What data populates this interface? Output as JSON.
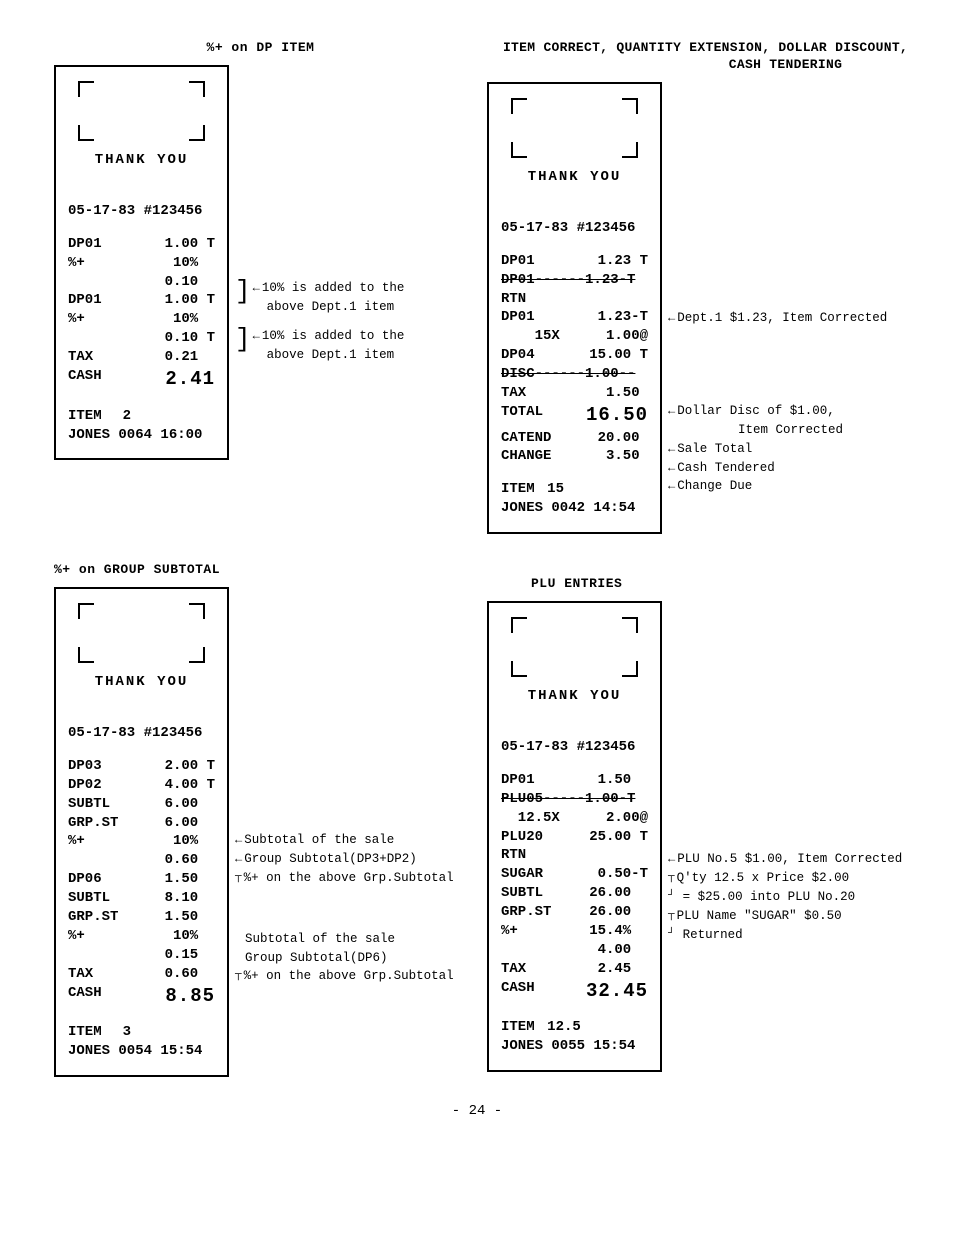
{
  "page_number": "- 24 -",
  "receipts": {
    "q1": {
      "title": "%+ on DP ITEM",
      "thank_you": "THANK  YOU",
      "header": "05-17-83 #123456",
      "lines": [
        {
          "l": "DP01",
          "r": "1.00 T"
        },
        {
          "l": "%+",
          "r": "10%  "
        },
        {
          "l": "",
          "r": "0.10  "
        },
        {
          "l": "DP01",
          "r": "1.00 T"
        },
        {
          "l": "%+",
          "r": "10%  "
        },
        {
          "l": "",
          "r": "0.10 T"
        },
        {
          "l": "TAX",
          "r": "0.21  "
        },
        {
          "l": "CASH",
          "r": "2.41",
          "big": true
        }
      ],
      "footer1": {
        "l": "ITEM",
        "r": "2          "
      },
      "footer2": "JONES 0064 16:00",
      "annotations": {
        "a1": "10% is added to the",
        "a1b": "above Dept.1 item",
        "a2": "10% is added to the",
        "a2b": "above Dept.1 item"
      }
    },
    "q2": {
      "title_a": "ITEM CORRECT, QUANTITY EXTENSION, DOLLAR DISCOUNT,",
      "title_b": "CASH TENDERING",
      "thank_you": "THANK  YOU",
      "header": "05-17-83 #123456",
      "lines": [
        {
          "l": "DP01",
          "r": "1.23 T"
        },
        {
          "l": "DP01------1.23-T",
          "strike": true,
          "full": true
        },
        {
          "l": "RTN",
          "r": ""
        },
        {
          "l": "DP01",
          "r": "1.23-T"
        },
        {
          "l": "    15X",
          "r": "1.00@"
        },
        {
          "l": "DP04",
          "r": "15.00 T"
        },
        {
          "l": "DISC------1.00--",
          "strike": true,
          "full": true
        },
        {
          "l": "TAX",
          "r": "1.50 "
        },
        {
          "l": "TOTAL",
          "r": "16.50",
          "big": true
        },
        {
          "l": "CATEND",
          "r": "20.00 "
        },
        {
          "l": "CHANGE",
          "r": "3.50 "
        }
      ],
      "footer1": {
        "l": "ITEM",
        "r": "15          "
      },
      "footer2": "JONES 0042 14:54",
      "annotations": {
        "a1": "Dept.1 $1.23, Item Corrected",
        "a2": "Dollar Disc of $1.00,",
        "a2b": "Item Corrected",
        "a3": "Sale Total",
        "a4": "Cash Tendered",
        "a5": "Change Due"
      }
    },
    "q3": {
      "title": "%+ on GROUP SUBTOTAL",
      "thank_you": "THANK  YOU",
      "header": "05-17-83 #123456",
      "lines": [
        {
          "l": "DP03",
          "r": "2.00 T"
        },
        {
          "l": "DP02",
          "r": "4.00 T"
        },
        {
          "l": "SUBTL",
          "r": "6.00  "
        },
        {
          "l": "GRP.ST",
          "r": "6.00  "
        },
        {
          "l": "%+",
          "r": "10%  "
        },
        {
          "l": "",
          "r": "0.60  "
        },
        {
          "l": "DP06",
          "r": "1.50  "
        },
        {
          "l": "SUBTL",
          "r": "8.10  "
        },
        {
          "l": "GRP.ST",
          "r": "1.50  "
        },
        {
          "l": "%+",
          "r": "10%  "
        },
        {
          "l": "",
          "r": "0.15  "
        },
        {
          "l": "TAX",
          "r": "0.60  "
        },
        {
          "l": "CASH",
          "r": "8.85",
          "big": true
        }
      ],
      "footer1": {
        "l": "ITEM",
        "r": "3          "
      },
      "footer2": "JONES 0054 15:54",
      "annotations": {
        "a1": "Subtotal of the sale",
        "a2": "Group Subtotal(DP3+DP2)",
        "a3": "%+ on the above Grp.Subtotal",
        "a4": "Subtotal of the sale",
        "a5": "Group Subtotal(DP6)",
        "a6": "%+ on the above Grp.Subtotal"
      }
    },
    "q4": {
      "title": "PLU ENTRIES",
      "thank_you": "THANK  YOU",
      "header": "05-17-83 #123456",
      "lines": [
        {
          "l": "DP01",
          "r": "1.50  "
        },
        {
          "l": "PLU05-----1.00-T",
          "strike": true,
          "full": true
        },
        {
          "l": "  12.5X",
          "r": "2.00@"
        },
        {
          "l": "PLU20",
          "r": "25.00 T"
        },
        {
          "l": "RTN",
          "r": ""
        },
        {
          "l": "SUGAR",
          "r": "0.50-T"
        },
        {
          "l": "SUBTL",
          "r": "26.00  "
        },
        {
          "l": "GRP.ST",
          "r": "26.00  "
        },
        {
          "l": "%+",
          "r": "15.4%  "
        },
        {
          "l": "",
          "r": "4.00  "
        },
        {
          "l": "TAX",
          "r": "2.45  "
        },
        {
          "l": "CASH",
          "r": "32.45",
          "big": true
        }
      ],
      "footer1": {
        "l": "ITEM",
        "r": "12.5        "
      },
      "footer2": "JONES 0055 15:54",
      "annotations": {
        "a1": "PLU No.5 $1.00, Item Corrected",
        "a2": "Q'ty 12.5 x Price $2.00",
        "a2b": "= $25.00 into PLU No.20",
        "a3": "PLU Name \"SUGAR\" $0.50",
        "a3b": "Returned"
      }
    }
  }
}
